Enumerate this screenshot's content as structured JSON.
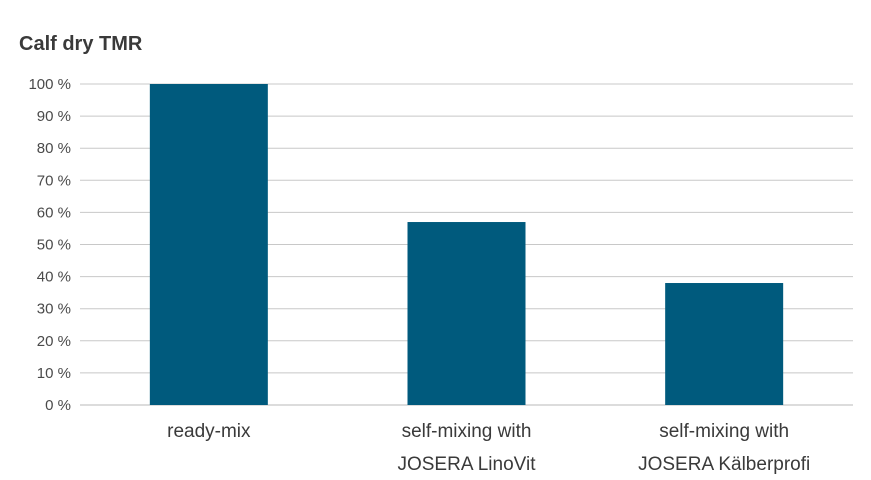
{
  "chart_data": {
    "type": "bar",
    "title": "Calf dry TMR",
    "categories": [
      [
        "ready-mix"
      ],
      [
        "self-mixing with",
        "JOSERA LinoVit"
      ],
      [
        "self-mixing with",
        "JOSERA Kälberprofi"
      ]
    ],
    "values": [
      100,
      57,
      38
    ],
    "unit": "%",
    "yticks": [
      "0 %",
      "10 %",
      "20 %",
      "30 %",
      "40 %",
      "50 %",
      "60 %",
      "70 %",
      "80 %",
      "90 %",
      "100 %"
    ],
    "ylim": [
      0,
      100
    ],
    "grid": true,
    "bar_color": "#005a7d",
    "grid_color": "#c8c8c8"
  }
}
